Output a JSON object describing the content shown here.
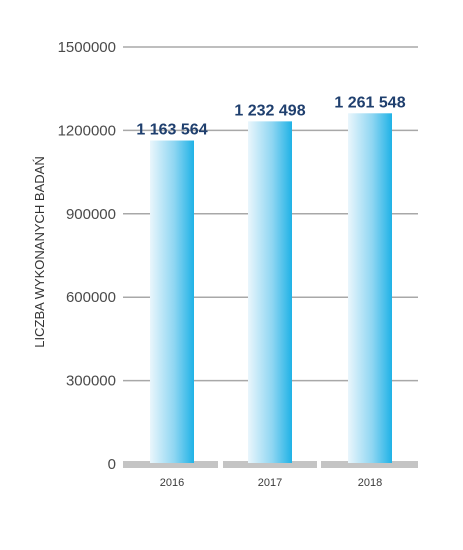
{
  "chart_data": {
    "type": "bar",
    "title": "",
    "xlabel": "",
    "ylabel": "LICZBA WYKONANYCH BADAŃ",
    "categories": [
      "2016",
      "2017",
      "2018"
    ],
    "values": [
      1163564,
      1232498,
      1261548
    ],
    "data_labels": [
      "1 163 564",
      "1 232 498",
      "1 261 548"
    ],
    "ylim": [
      0,
      1500000
    ],
    "yticks": [
      0,
      300000,
      600000,
      900000,
      1200000,
      1500000
    ],
    "ytick_labels": [
      "0",
      "300000",
      "600000",
      "900000",
      "1200000",
      "1500000"
    ],
    "grid": true,
    "legend": "none",
    "colors": {
      "bar_light": "#eaf6fc",
      "bar_dark": "#1fb2e6",
      "grid": "#a8a8a8",
      "baseline": "#c4c4c4",
      "data_label": "#1f3f6e"
    }
  }
}
